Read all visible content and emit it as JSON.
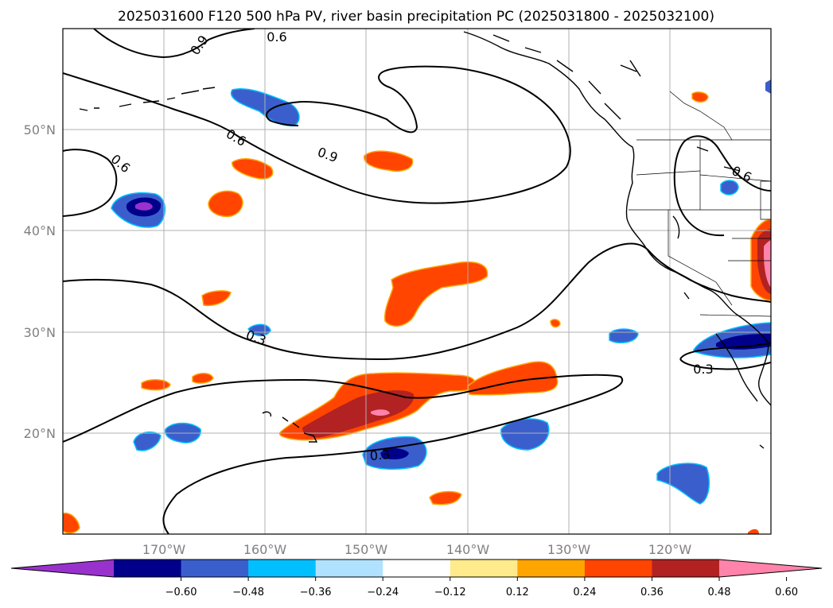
{
  "title": "2025031600 F120 500 hPa PV, river basin precipitation PC (2025031800 - 2025032100)",
  "lat_labels": [
    "50°N",
    "40°N",
    "30°N",
    "20°N"
  ],
  "lon_labels": [
    "170°W",
    "160°W",
    "150°W",
    "140°W",
    "130°W",
    "120°W"
  ],
  "colorbar": {
    "ticks": [
      "−0.60",
      "−0.48",
      "−0.36",
      "−0.24",
      "−0.12",
      "0.12",
      "0.24",
      "0.36",
      "0.48",
      "0.60"
    ],
    "colors": [
      "#9932cc",
      "#00008b",
      "#3a5fcd",
      "#00bfff",
      "#b0e2ff",
      "#ffffff",
      "#ffeb8c",
      "#ffa500",
      "#ff4500",
      "#b22222",
      "#ff83ab"
    ]
  },
  "contour_labels": [
    "0.9",
    "0.6",
    "0.6",
    "0.9",
    "0.6",
    "0.6",
    "0.3",
    "0.3",
    "0.3"
  ],
  "colors": {
    "land_outline": "#000000",
    "grid": "#b0b0b0",
    "contour": "#000000"
  }
}
